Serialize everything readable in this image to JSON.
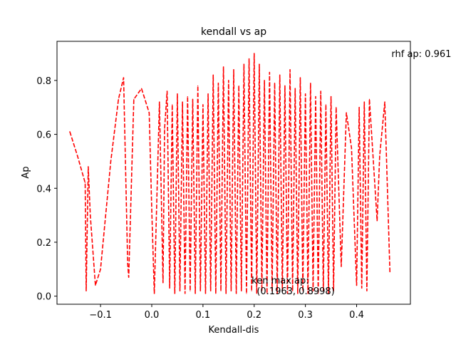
{
  "chart_data": {
    "type": "line",
    "title": "kendall vs ap",
    "xlabel": "Kendall-dis",
    "ylabel": "Ap",
    "xlim": [
      -0.185,
      0.505
    ],
    "ylim": [
      -0.03,
      0.945
    ],
    "xticks": [
      -0.1,
      0.0,
      0.1,
      0.2,
      0.3,
      0.4
    ],
    "xtick_labels": [
      "−0.1",
      "0.0",
      "0.1",
      "0.2",
      "0.3",
      "0.4"
    ],
    "yticks": [
      0.0,
      0.2,
      0.4,
      0.6,
      0.8
    ],
    "ytick_labels": [
      "0.0",
      "0.2",
      "0.4",
      "0.6",
      "0.8"
    ],
    "grid": false,
    "legend": "none",
    "colors": {
      "series": "#ff0000",
      "axes": "#000000",
      "background": "#ffffff"
    },
    "series": [
      {
        "line_style": "dashed",
        "x": [
          -0.16,
          -0.145,
          -0.13,
          -0.128,
          -0.124,
          -0.12,
          -0.11,
          -0.1,
          -0.09,
          -0.08,
          -0.065,
          -0.055,
          -0.047,
          -0.045,
          -0.035,
          -0.02,
          -0.005,
          0.0,
          0.005,
          0.015,
          0.022,
          0.025,
          0.03,
          0.035,
          0.04,
          0.045,
          0.05,
          0.055,
          0.06,
          0.065,
          0.07,
          0.075,
          0.08,
          0.085,
          0.09,
          0.095,
          0.1,
          0.105,
          0.11,
          0.115,
          0.12,
          0.125,
          0.13,
          0.135,
          0.14,
          0.145,
          0.15,
          0.155,
          0.16,
          0.165,
          0.17,
          0.175,
          0.18,
          0.185,
          0.19,
          0.195,
          0.2,
          0.205,
          0.21,
          0.215,
          0.22,
          0.225,
          0.23,
          0.235,
          0.24,
          0.245,
          0.25,
          0.255,
          0.26,
          0.265,
          0.27,
          0.275,
          0.28,
          0.285,
          0.29,
          0.295,
          0.3,
          0.305,
          0.31,
          0.315,
          0.32,
          0.325,
          0.33,
          0.335,
          0.34,
          0.345,
          0.35,
          0.355,
          0.36,
          0.37,
          0.38,
          0.39,
          0.4,
          0.405,
          0.41,
          0.415,
          0.42,
          0.425,
          0.43,
          0.44,
          0.445,
          0.455,
          0.465
        ],
        "y": [
          0.61,
          0.52,
          0.42,
          0.02,
          0.48,
          0.3,
          0.04,
          0.1,
          0.3,
          0.5,
          0.73,
          0.81,
          0.12,
          0.07,
          0.73,
          0.77,
          0.68,
          0.32,
          0.01,
          0.72,
          0.05,
          0.62,
          0.76,
          0.03,
          0.71,
          0.01,
          0.75,
          0.02,
          0.72,
          0.01,
          0.74,
          0.02,
          0.73,
          0.01,
          0.78,
          0.02,
          0.71,
          0.01,
          0.75,
          0.02,
          0.82,
          0.01,
          0.79,
          0.02,
          0.85,
          0.01,
          0.8,
          0.02,
          0.84,
          0.01,
          0.78,
          0.02,
          0.86,
          0.01,
          0.88,
          0.02,
          0.9,
          0.01,
          0.86,
          0.02,
          0.8,
          0.01,
          0.83,
          0.02,
          0.79,
          0.01,
          0.82,
          0.02,
          0.78,
          0.01,
          0.84,
          0.02,
          0.77,
          0.01,
          0.81,
          0.02,
          0.75,
          0.01,
          0.79,
          0.02,
          0.74,
          0.01,
          0.76,
          0.02,
          0.71,
          0.01,
          0.74,
          0.02,
          0.7,
          0.11,
          0.68,
          0.55,
          0.04,
          0.7,
          0.03,
          0.72,
          0.02,
          0.73,
          0.58,
          0.28,
          0.52,
          0.72,
          0.09
        ]
      }
    ],
    "annotations": [
      {
        "text": "rhf ap: 0.961",
        "x": 0.468,
        "y": 0.9
      },
      {
        "text": "ken  max ap:",
        "x": 0.195,
        "y": 0.06
      },
      {
        "text": "(0.1963, 0.8998)",
        "x": 0.205,
        "y": 0.02
      }
    ]
  }
}
